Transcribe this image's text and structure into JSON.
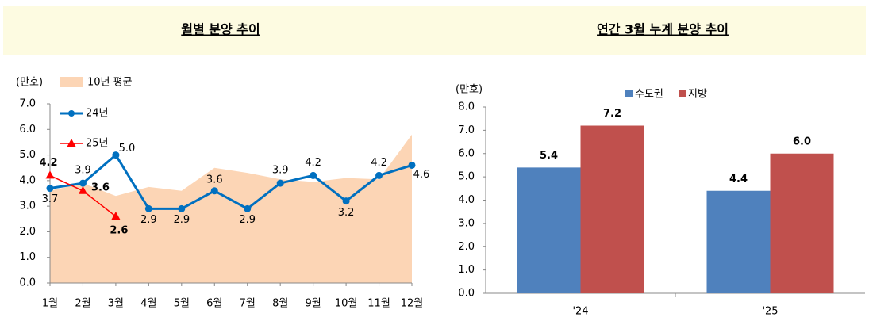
{
  "chart_data": [
    {
      "type": "line",
      "title": "월별 분양 추이",
      "y_label": "(만호)",
      "categories": [
        "1월",
        "2월",
        "3월",
        "4월",
        "5월",
        "6월",
        "7월",
        "8월",
        "9월",
        "10월",
        "11월",
        "12월"
      ],
      "ylim": [
        0,
        7
      ],
      "yticks": [
        {
          "value": 0,
          "label": "0.0"
        },
        {
          "value": 1,
          "label": "1.0"
        },
        {
          "value": 2,
          "label": "2.0"
        },
        {
          "value": 3,
          "label": "3.0"
        },
        {
          "value": 4,
          "label": "4.0"
        },
        {
          "value": 5,
          "label": "5.0"
        },
        {
          "value": 6,
          "label": "6.0"
        },
        {
          "value": 7,
          "label": "7.0"
        }
      ],
      "series": [
        {
          "name": "10년 평균",
          "type": "area",
          "color": "#fcd5b5",
          "values": [
            3.6,
            3.9,
            3.4,
            3.75,
            3.6,
            4.5,
            4.3,
            4.05,
            3.95,
            4.1,
            4.05,
            5.8
          ]
        },
        {
          "name": "24년",
          "type": "line",
          "marker": "circle",
          "color": "#0070c0",
          "values": [
            3.7,
            3.9,
            5.0,
            2.9,
            2.9,
            3.6,
            2.9,
            3.9,
            4.2,
            3.2,
            4.2,
            4.6
          ],
          "value_labels": [
            "3.7",
            "3.9",
            "5.0",
            "2.9",
            "2.9",
            "3.6",
            "2.9",
            "3.9",
            "4.2",
            "3.2",
            "4.2",
            "4.6"
          ]
        },
        {
          "name": "25년",
          "type": "line",
          "marker": "triangle",
          "color": "#ff0000",
          "values": [
            4.2,
            3.6,
            2.6,
            null,
            null,
            null,
            null,
            null,
            null,
            null,
            null,
            null
          ],
          "value_labels": [
            "4.2",
            "3.6",
            "2.6",
            null,
            null,
            null,
            null,
            null,
            null,
            null,
            null,
            null
          ]
        }
      ]
    },
    {
      "type": "bar",
      "title": "연간 3월 누계 분양 추이",
      "y_label": "(만호)",
      "categories": [
        "'24",
        "'25"
      ],
      "ylim": [
        0,
        8
      ],
      "yticks": [
        {
          "value": 0,
          "label": "0.0"
        },
        {
          "value": 1,
          "label": "1.0"
        },
        {
          "value": 2,
          "label": "2.0"
        },
        {
          "value": 3,
          "label": "3.0"
        },
        {
          "value": 4,
          "label": "4.0"
        },
        {
          "value": 5,
          "label": "5.0"
        },
        {
          "value": 6,
          "label": "6.0"
        },
        {
          "value": 7,
          "label": "7.0"
        },
        {
          "value": 8,
          "label": "8.0"
        }
      ],
      "series": [
        {
          "name": "수도권",
          "color": "#4f81bd",
          "values": [
            5.4,
            4.4
          ]
        },
        {
          "name": "지방",
          "color": "#c0504d",
          "values": [
            7.2,
            6.0
          ],
          "value_labels": [
            "7.2",
            "6.0"
          ]
        }
      ]
    }
  ]
}
